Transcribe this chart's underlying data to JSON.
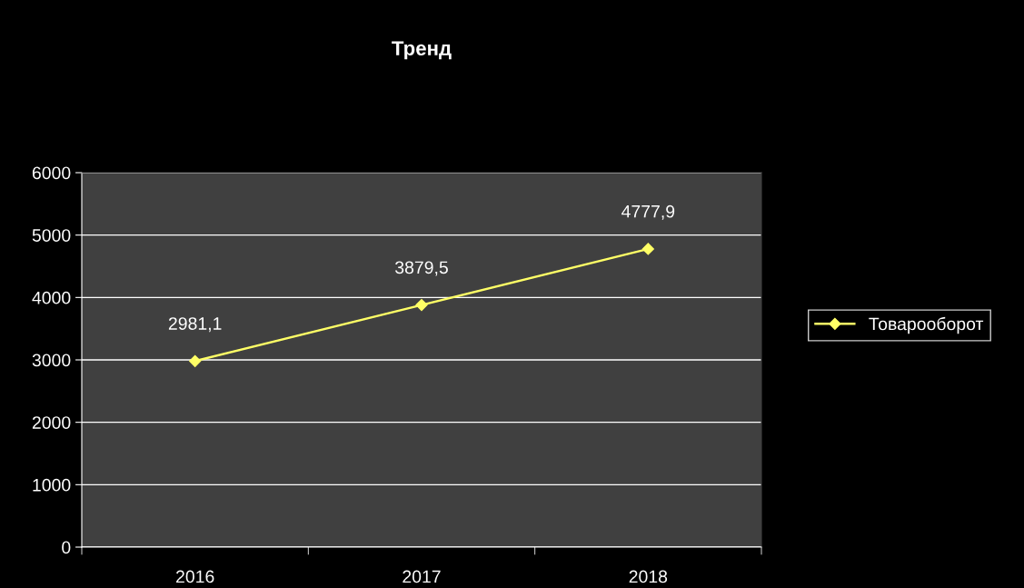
{
  "chart_data": {
    "type": "line",
    "title": "Тренд",
    "categories": [
      "2016",
      "2017",
      "2018"
    ],
    "series": [
      {
        "name": "Товарооборот",
        "color": "#ffff66",
        "values": [
          2981.1,
          3879.5,
          4777.9
        ],
        "value_labels": [
          "2981,1",
          "3879,5",
          "4777,9"
        ]
      }
    ],
    "ylim": [
      0,
      6000
    ],
    "yticks": [
      0,
      1000,
      2000,
      3000,
      4000,
      5000,
      6000
    ],
    "grid": "y",
    "legend": "right",
    "marker": "diamond",
    "line_style": "solid"
  }
}
